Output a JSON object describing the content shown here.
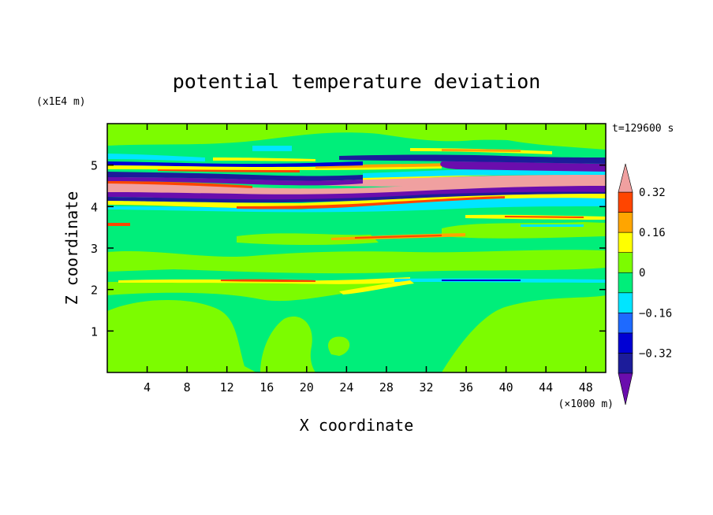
{
  "chart_data": {
    "type": "heatmap",
    "title": "potential temperature deviation",
    "time_label": "t=129600 s",
    "xlabel": "X coordinate",
    "ylabel": "Z coordinate",
    "x_unit": "(×1000 m)",
    "y_unit": "(x1E4 m)",
    "xlim": [
      0,
      50
    ],
    "ylim": [
      0,
      6
    ],
    "x_ticks": [
      4,
      8,
      12,
      16,
      20,
      24,
      28,
      32,
      36,
      40,
      44,
      48
    ],
    "y_ticks": [
      1,
      2,
      3,
      4,
      5
    ],
    "colorbar": {
      "levels": [
        -0.4,
        -0.32,
        -0.24,
        -0.16,
        -0.08,
        0,
        0.08,
        0.16,
        0.24,
        0.32,
        0.4
      ],
      "labeled": [
        0.32,
        0.16,
        0,
        -0.16,
        -0.32
      ],
      "labels": [
        "0.32",
        "0.16",
        "0",
        "−0.16",
        "−0.32"
      ],
      "colors": [
        "#6a0dad",
        "#1c1c9a",
        "#0000d4",
        "#1e6aff",
        "#00e5ff",
        "#00ee7a",
        "#7cfc00",
        "#ffff00",
        "#ffa500",
        "#ff4500",
        "#f0a0a0"
      ]
    },
    "bands": [
      {
        "name": "upper-layers-blue",
        "z": [
          4.95,
          5.05
        ],
        "value": -0.35
      },
      {
        "name": "upper-layers-pink",
        "z": [
          4.3,
          4.75
        ],
        "value": 0.45
      },
      {
        "name": "upper-layers-purple",
        "z": [
          4.25,
          4.45
        ],
        "value": -0.45
      }
    ]
  }
}
